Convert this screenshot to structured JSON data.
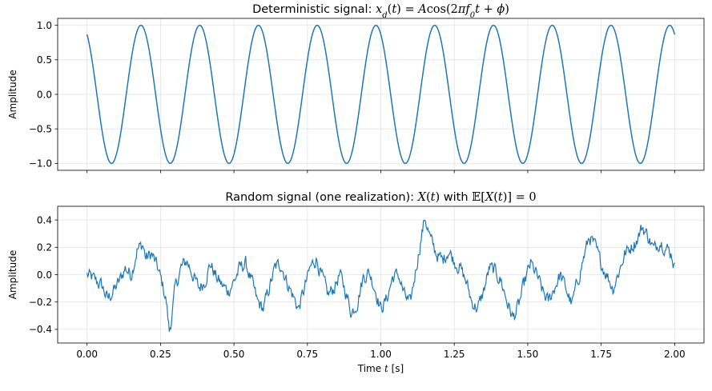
{
  "chart_data": [
    {
      "type": "line",
      "title_parts": {
        "prefix": "Deterministic signal: ",
        "math": [
          {
            "t": "x",
            "s": "i"
          },
          {
            "t": "d",
            "s": "sub"
          },
          {
            "t": "(",
            "s": "r"
          },
          {
            "t": "t",
            "s": "i"
          },
          {
            "t": ") = ",
            "s": "r"
          },
          {
            "t": "A",
            "s": "i"
          },
          {
            "t": "cos(2",
            "s": "r"
          },
          {
            "t": "π",
            "s": "i"
          },
          {
            "t": "f",
            "s": "i"
          },
          {
            "t": "0",
            "s": "sub"
          },
          {
            "t": "t",
            "s": "i"
          },
          {
            "t": " + ",
            "s": "r"
          },
          {
            "t": "ϕ",
            "s": "i"
          },
          {
            "t": ")",
            "s": "r"
          }
        ]
      },
      "ylabel": "Amplitude",
      "xlim": [
        -0.1,
        2.1
      ],
      "ylim": [
        -1.1,
        1.1
      ],
      "yticks": [
        -1.0,
        -0.5,
        0.0,
        0.5,
        1.0
      ],
      "ytick_labels": [
        "−1.0",
        "−0.5",
        "0.0",
        "0.5",
        "1.0"
      ],
      "xticks": [
        0.0,
        0.25,
        0.5,
        0.75,
        1.0,
        1.25,
        1.5,
        1.75,
        2.0
      ],
      "grid": true,
      "color": "#1f77b4",
      "signal": {
        "amplitude": 1.0,
        "frequency_hz": 5,
        "t_start": 0.0,
        "t_end": 2.0,
        "phase_rad": 0.52,
        "samples": 801
      }
    },
    {
      "type": "line",
      "title_parts": {
        "prefix": "Random signal (one realization): ",
        "math": [
          {
            "t": "X",
            "s": "i"
          },
          {
            "t": "(",
            "s": "r"
          },
          {
            "t": "t",
            "s": "i"
          },
          {
            "t": ")",
            "s": "r"
          },
          {
            "t": " with ",
            "s": "plain"
          },
          {
            "t": "𝔼",
            "s": "r"
          },
          {
            "t": "[",
            "s": "r"
          },
          {
            "t": "X",
            "s": "i"
          },
          {
            "t": "(",
            "s": "r"
          },
          {
            "t": "t",
            "s": "i"
          },
          {
            "t": ")] = 0",
            "s": "r"
          }
        ]
      },
      "ylabel": "Amplitude",
      "xlabel_parts": [
        {
          "t": "Time ",
          "s": "plain"
        },
        {
          "t": "t",
          "s": "i"
        },
        {
          "t": " [s]",
          "s": "plain"
        }
      ],
      "xlim": [
        -0.1,
        2.1
      ],
      "ylim": [
        -0.5,
        0.5
      ],
      "yticks": [
        -0.4,
        -0.2,
        0.0,
        0.2,
        0.4
      ],
      "ytick_labels": [
        "−0.4",
        "−0.2",
        "0.0",
        "0.2",
        "0.4"
      ],
      "xticks": [
        0.0,
        0.25,
        0.5,
        0.75,
        1.0,
        1.25,
        1.5,
        1.75,
        2.0
      ],
      "xtick_labels": [
        "0.00",
        "0.25",
        "0.50",
        "0.75",
        "1.00",
        "1.25",
        "1.50",
        "1.75",
        "2.00"
      ],
      "grid": true,
      "color": "#1f77b4",
      "t_start": 0.0,
      "t_end": 2.0,
      "samples": 801,
      "envelope": [
        [
          0.0,
          0.0
        ],
        [
          0.02,
          -0.03
        ],
        [
          0.05,
          -0.08
        ],
        [
          0.07,
          -0.18
        ],
        [
          0.09,
          -0.12
        ],
        [
          0.11,
          -0.05
        ],
        [
          0.13,
          0.05
        ],
        [
          0.15,
          0.0
        ],
        [
          0.17,
          0.18
        ],
        [
          0.19,
          0.22
        ],
        [
          0.2,
          0.12
        ],
        [
          0.22,
          0.15
        ],
        [
          0.24,
          0.05
        ],
        [
          0.26,
          -0.1
        ],
        [
          0.27,
          -0.2
        ],
        [
          0.28,
          -0.42
        ],
        [
          0.29,
          -0.28
        ],
        [
          0.3,
          -0.1
        ],
        [
          0.32,
          0.05
        ],
        [
          0.34,
          0.1
        ],
        [
          0.36,
          0.0
        ],
        [
          0.38,
          -0.1
        ],
        [
          0.4,
          -0.05
        ],
        [
          0.42,
          0.08
        ],
        [
          0.44,
          -0.02
        ],
        [
          0.46,
          -0.08
        ],
        [
          0.48,
          -0.12
        ],
        [
          0.5,
          -0.05
        ],
        [
          0.52,
          0.05
        ],
        [
          0.54,
          0.08
        ],
        [
          0.56,
          -0.05
        ],
        [
          0.58,
          -0.2
        ],
        [
          0.6,
          -0.25
        ],
        [
          0.62,
          -0.1
        ],
        [
          0.64,
          0.05
        ],
        [
          0.66,
          0.08
        ],
        [
          0.68,
          -0.05
        ],
        [
          0.7,
          -0.15
        ],
        [
          0.72,
          -0.25
        ],
        [
          0.74,
          -0.1
        ],
        [
          0.76,
          0.05
        ],
        [
          0.78,
          0.12
        ],
        [
          0.8,
          -0.02
        ],
        [
          0.82,
          -0.15
        ],
        [
          0.84,
          -0.1
        ],
        [
          0.86,
          0.0
        ],
        [
          0.88,
          -0.12
        ],
        [
          0.9,
          -0.28
        ],
        [
          0.92,
          -0.2
        ],
        [
          0.94,
          -0.02
        ],
        [
          0.96,
          0.02
        ],
        [
          0.98,
          -0.1
        ],
        [
          1.0,
          -0.25
        ],
        [
          1.02,
          -0.18
        ],
        [
          1.04,
          -0.02
        ],
        [
          1.06,
          0.0
        ],
        [
          1.08,
          -0.15
        ],
        [
          1.1,
          -0.22
        ],
        [
          1.12,
          0.05
        ],
        [
          1.14,
          0.3
        ],
        [
          1.15,
          0.42
        ],
        [
          1.17,
          0.25
        ],
        [
          1.19,
          0.15
        ],
        [
          1.21,
          0.1
        ],
        [
          1.23,
          0.18
        ],
        [
          1.25,
          0.1
        ],
        [
          1.27,
          0.05
        ],
        [
          1.29,
          -0.05
        ],
        [
          1.31,
          -0.2
        ],
        [
          1.33,
          -0.25
        ],
        [
          1.35,
          -0.12
        ],
        [
          1.37,
          0.05
        ],
        [
          1.39,
          0.02
        ],
        [
          1.41,
          -0.05
        ],
        [
          1.43,
          -0.2
        ],
        [
          1.45,
          -0.32
        ],
        [
          1.47,
          -0.22
        ],
        [
          1.49,
          -0.05
        ],
        [
          1.51,
          0.08
        ],
        [
          1.53,
          0.0
        ],
        [
          1.55,
          -0.12
        ],
        [
          1.57,
          -0.2
        ],
        [
          1.59,
          -0.1
        ],
        [
          1.61,
          0.0
        ],
        [
          1.63,
          -0.1
        ],
        [
          1.65,
          -0.22
        ],
        [
          1.67,
          -0.05
        ],
        [
          1.69,
          0.12
        ],
        [
          1.71,
          0.28
        ],
        [
          1.73,
          0.2
        ],
        [
          1.75,
          0.08
        ],
        [
          1.77,
          0.0
        ],
        [
          1.79,
          -0.1
        ],
        [
          1.81,
          0.02
        ],
        [
          1.83,
          0.15
        ],
        [
          1.85,
          0.2
        ],
        [
          1.87,
          0.25
        ],
        [
          1.89,
          0.35
        ],
        [
          1.91,
          0.28
        ],
        [
          1.93,
          0.18
        ],
        [
          1.95,
          0.25
        ],
        [
          1.97,
          0.2
        ],
        [
          1.99,
          0.15
        ],
        [
          2.0,
          0.05
        ]
      ]
    }
  ]
}
